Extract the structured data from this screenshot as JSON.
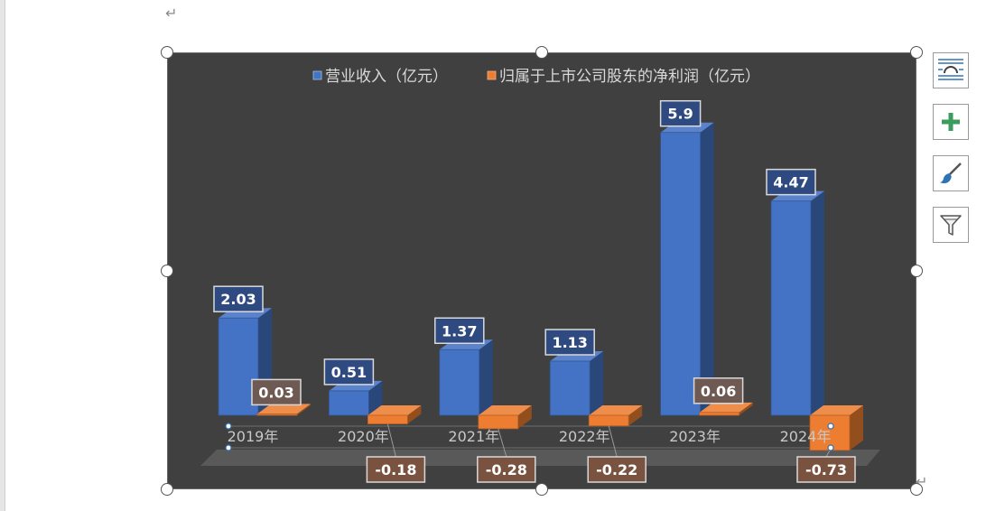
{
  "document": {
    "paragraph_mark": "↵"
  },
  "chart_data": {
    "type": "bar",
    "categories": [
      "2019年",
      "2020年",
      "2021年",
      "2022年",
      "2023年",
      "2024年"
    ],
    "series": [
      {
        "name": "营业收入（亿元）",
        "values": [
          2.03,
          0.51,
          1.37,
          1.13,
          5.9,
          4.47
        ],
        "color": "#4472c4",
        "labels": [
          "2.03",
          "0.51",
          "1.37",
          "1.13",
          "5.9",
          "4.47"
        ]
      },
      {
        "name": "归属于上市公司股东的净利润（亿元）",
        "values": [
          0.03,
          -0.18,
          -0.28,
          -0.22,
          0.06,
          -0.73
        ],
        "color": "#ed7d31",
        "labels": [
          "0.03",
          "-0.18",
          "-0.28",
          "-0.22",
          "0.06",
          "-0.73"
        ]
      }
    ],
    "title": "",
    "xlabel": "",
    "ylabel": "",
    "legend_position": "top",
    "grid": false,
    "style": "3d-column",
    "background": "#404040"
  },
  "chart_tools": [
    {
      "name": "layout-options",
      "icon": "layout-options-icon"
    },
    {
      "name": "chart-elements",
      "icon": "plus-icon"
    },
    {
      "name": "chart-styles",
      "icon": "brush-icon"
    },
    {
      "name": "chart-filters",
      "icon": "filter-icon"
    }
  ]
}
